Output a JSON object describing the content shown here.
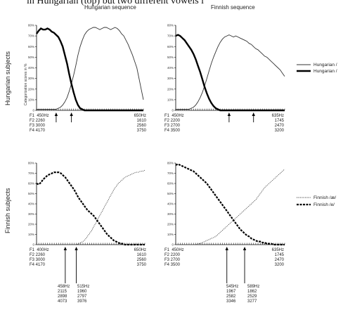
{
  "page": {
    "caption": "in Hungarian (top) but two different vowels i",
    "ylabel": "Categorization scores in %"
  },
  "panels": [
    {
      "col_title": "Hungarian sequence",
      "row_label": "Hungarian subjects",
      "formants_start": "F1  450Hz\nF2 2260\nF3 3000\nF4 4170",
      "formants_end": "650Hz\n1610\n2560\n3750",
      "arrow_labels": []
    },
    {
      "col_title": "Finnish sequence",
      "row_label": "",
      "formants_start": "F1  450Hz\nF2 2200\nF3 2700\nF4 3500",
      "formants_end": "635Hz\n1745\n2470\n3200",
      "arrow_labels": []
    },
    {
      "col_title": "",
      "row_label": "Finnish subjects",
      "formants_start": "F1  400Hz\nF2 2260\nF3 3000\nF4 4170",
      "formants_end": "650Hz\n1610\n2560\n3750",
      "arrow_labels": [
        "458Hz\n2115\n2898\n4073",
        "515Hz\n1960\n2797\n3976"
      ]
    },
    {
      "col_title": "",
      "row_label": "",
      "formants_start": "F1  450Hz\nF2 2200\nF3 2700\nF4 3500",
      "formants_end": "635Hz\n1745\n2470\n3200",
      "arrow_labels": [
        "545Hz\n1967\n2582\n3346",
        "589Hz\n1862\n2529\n3277"
      ]
    }
  ],
  "legends": [
    {
      "entries": [
        "Hungarian /",
        "Hungarian /"
      ]
    },
    {
      "entries": [
        "Finnish /æ/",
        "Finnish /e/"
      ]
    }
  ],
  "chart_data": [
    {
      "type": "line",
      "panel": "top-left",
      "x": [
        1,
        2,
        3,
        4,
        5,
        6,
        7,
        8,
        9,
        10,
        11,
        12,
        13,
        14,
        15,
        16,
        17,
        18,
        19,
        20,
        21,
        22,
        23,
        24,
        25,
        26,
        27,
        28,
        29,
        30,
        31,
        32,
        33,
        34,
        35,
        36,
        37,
        38,
        39,
        40,
        41,
        42,
        43,
        44,
        45,
        46,
        47,
        48,
        49,
        50
      ],
      "ylim": [
        0,
        80
      ],
      "yticks": [
        "0",
        "10%",
        "20%",
        "30%",
        "40%",
        "50%",
        "60%",
        "70%",
        "80%"
      ],
      "arrows_at": [
        10,
        17
      ],
      "series": [
        {
          "name": "",
          "style": "thin",
          "values": [
            1,
            1,
            1,
            1,
            1,
            1,
            1,
            1,
            1,
            1,
            2,
            3,
            5,
            8,
            12,
            18,
            25,
            33,
            42,
            52,
            60,
            66,
            71,
            74,
            76,
            77,
            78,
            78,
            77,
            76,
            77,
            78,
            78,
            77,
            76,
            77,
            78,
            77,
            75,
            72,
            70,
            66,
            62,
            57,
            52,
            46,
            40,
            30,
            20,
            10
          ]
        },
        {
          "name": "",
          "style": "thick",
          "values": [
            72,
            75,
            77,
            76,
            76,
            77,
            76,
            74,
            73,
            71,
            69,
            65,
            60,
            52,
            44,
            34,
            25,
            17,
            10,
            5,
            2,
            1,
            0,
            0,
            0,
            0,
            0,
            0,
            0,
            0,
            0,
            0,
            0,
            0,
            0,
            0,
            0,
            0,
            0,
            0,
            0,
            0,
            0,
            0,
            0,
            0,
            0,
            0,
            0,
            0
          ]
        }
      ]
    },
    {
      "type": "line",
      "panel": "top-right",
      "x": [
        1,
        2,
        3,
        4,
        5,
        6,
        7,
        8,
        9,
        10,
        11,
        12,
        13,
        14,
        15,
        16,
        17,
        18,
        19,
        20,
        21,
        22,
        23,
        24,
        25,
        26,
        27,
        28,
        29,
        30,
        31,
        32,
        33,
        34,
        35,
        36,
        37,
        38,
        39,
        40,
        41,
        42,
        43,
        44,
        45,
        46,
        47,
        48,
        49,
        50
      ],
      "ylim": [
        0,
        80
      ],
      "yticks": [
        "0",
        "10%",
        "20%",
        "30%",
        "40%",
        "50%",
        "60%",
        "70%",
        "80%"
      ],
      "arrows_at": [
        25,
        36
      ],
      "series": [
        {
          "name": "",
          "style": "thin",
          "values": [
            1,
            1,
            1,
            1,
            1,
            1,
            1,
            2,
            3,
            5,
            8,
            12,
            17,
            23,
            30,
            37,
            44,
            50,
            55,
            60,
            64,
            67,
            69,
            70,
            71,
            70,
            69,
            70,
            69,
            68,
            67,
            66,
            65,
            63,
            62,
            60,
            58,
            57,
            55,
            53,
            51,
            50,
            48,
            46,
            44,
            42,
            40,
            38,
            35,
            32
          ]
        },
        {
          "name": "",
          "style": "thick",
          "values": [
            70,
            71,
            70,
            68,
            66,
            63,
            60,
            57,
            53,
            48,
            42,
            36,
            29,
            22,
            16,
            11,
            7,
            4,
            2,
            1,
            0,
            0,
            0,
            0,
            0,
            0,
            0,
            0,
            0,
            0,
            0,
            0,
            0,
            0,
            0,
            0,
            0,
            0,
            0,
            0,
            0,
            0,
            0,
            0,
            0,
            0,
            0,
            0,
            0,
            0
          ]
        }
      ]
    },
    {
      "type": "line",
      "panel": "bottom-left",
      "x": [
        1,
        2,
        3,
        4,
        5,
        6,
        7,
        8,
        9,
        10,
        11,
        12,
        13,
        14,
        15,
        16,
        17,
        18,
        19,
        20,
        21,
        22,
        23,
        24,
        25,
        26,
        27,
        28,
        29,
        30,
        31,
        32,
        33,
        34,
        35,
        36,
        37,
        38,
        39,
        40,
        41,
        42,
        43,
        44,
        45,
        46,
        47,
        48,
        49,
        50
      ],
      "ylim": [
        0,
        80
      ],
      "yticks": [
        "0",
        "10%",
        "20%",
        "30%",
        "40%",
        "50%",
        "60%",
        "70%",
        "80%"
      ],
      "arrows_at": [
        14,
        19
      ],
      "series": [
        {
          "name": "Finnish /æ/",
          "style": "dotted",
          "values": [
            0,
            0,
            0,
            0,
            0,
            0,
            0,
            0,
            0,
            0,
            0,
            0,
            0,
            0,
            0,
            0,
            0,
            0,
            0,
            1,
            2,
            3,
            5,
            8,
            11,
            14,
            18,
            22,
            26,
            30,
            34,
            38,
            42,
            46,
            50,
            54,
            57,
            60,
            62,
            64,
            66,
            67,
            68,
            69,
            70,
            71,
            71,
            72,
            72,
            73
          ]
        },
        {
          "name": "Finnish /e/",
          "style": "dashed",
          "values": [
            60,
            59,
            61,
            64,
            66,
            68,
            69,
            70,
            71,
            71,
            71,
            70,
            68,
            66,
            63,
            60,
            57,
            54,
            50,
            46,
            43,
            40,
            37,
            34,
            32,
            30,
            28,
            25,
            22,
            19,
            16,
            13,
            10,
            8,
            6,
            4,
            3,
            2,
            1,
            1,
            0,
            0,
            0,
            0,
            0,
            0,
            0,
            0,
            0,
            0
          ]
        }
      ]
    },
    {
      "type": "line",
      "panel": "bottom-right",
      "x": [
        1,
        2,
        3,
        4,
        5,
        6,
        7,
        8,
        9,
        10,
        11,
        12,
        13,
        14,
        15,
        16,
        17,
        18,
        19,
        20,
        21,
        22,
        23,
        24,
        25,
        26,
        27,
        28,
        29,
        30,
        31,
        32,
        33,
        34,
        35,
        36,
        37,
        38,
        39,
        40,
        41,
        42,
        43,
        44,
        45,
        46,
        47,
        48,
        49,
        50
      ],
      "ylim": [
        0,
        80
      ],
      "yticks": [
        "0",
        "10%",
        "20%",
        "30%",
        "40%",
        "50%",
        "60%",
        "70%",
        "80%"
      ],
      "arrows_at": [
        24,
        32
      ],
      "series": [
        {
          "name": "Finnish /æ/",
          "style": "dotted",
          "values": [
            0,
            0,
            0,
            0,
            0,
            0,
            0,
            0,
            0,
            0,
            1,
            1,
            2,
            3,
            4,
            5,
            6,
            7,
            8,
            10,
            12,
            14,
            16,
            18,
            20,
            22,
            24,
            26,
            28,
            30,
            32,
            34,
            36,
            38,
            40,
            42,
            44,
            47,
            50,
            53,
            56,
            58,
            60,
            62,
            64,
            66,
            68,
            70,
            72,
            74
          ]
        },
        {
          "name": "Finnish /e/",
          "style": "dashed",
          "values": [
            78,
            79,
            78,
            77,
            76,
            75,
            74,
            73,
            72,
            70,
            68,
            66,
            64,
            62,
            60,
            57,
            54,
            51,
            48,
            45,
            42,
            39,
            36,
            33,
            30,
            27,
            24,
            21,
            18,
            15,
            13,
            11,
            9,
            8,
            6,
            5,
            4,
            3,
            3,
            2,
            2,
            1,
            1,
            1,
            0,
            0,
            0,
            0,
            0,
            0
          ]
        }
      ]
    }
  ]
}
